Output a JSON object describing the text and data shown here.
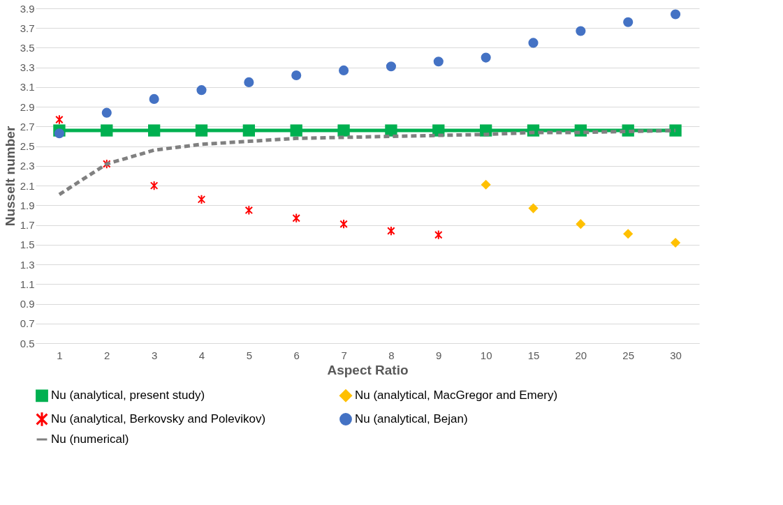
{
  "chart_data": {
    "type": "scatter",
    "xlabel": "Aspect Ratio",
    "ylabel": "Nusselt number",
    "categories": [
      "1",
      "2",
      "3",
      "4",
      "5",
      "6",
      "7",
      "8",
      "9",
      "10",
      "15",
      "20",
      "25",
      "30"
    ],
    "ylim": [
      0.5,
      3.9
    ],
    "yticks": [
      0.5,
      0.7,
      0.9,
      1.1,
      1.3,
      1.5,
      1.7,
      1.9,
      2.1,
      2.3,
      2.5,
      2.7,
      2.9,
      3.1,
      3.3,
      3.5,
      3.7,
      3.9
    ],
    "grid": "y",
    "legend": "bottom",
    "series": [
      {
        "name": "Nu (analytical, present study)",
        "type": "line",
        "marker": "square",
        "line_style": "solid",
        "color": "#00b050",
        "values": [
          2.66,
          2.66,
          2.66,
          2.66,
          2.66,
          2.66,
          2.66,
          2.66,
          2.66,
          2.66,
          2.66,
          2.66,
          2.66,
          2.66
        ]
      },
      {
        "name": "Nu (analytical, MacGregor and Emery)",
        "type": "scatter",
        "marker": "diamond",
        "color": "#ffc000",
        "values": [
          null,
          null,
          null,
          null,
          null,
          null,
          null,
          null,
          null,
          2.11,
          1.87,
          1.71,
          1.61,
          1.52
        ]
      },
      {
        "name": "Nu (analytical, Berkovsky and Polevikov)",
        "type": "scatter",
        "marker": "cross",
        "color": "#ff0000",
        "values": [
          2.77,
          2.32,
          2.1,
          1.96,
          1.85,
          1.77,
          1.71,
          1.64,
          1.6,
          null,
          null,
          null,
          null,
          null
        ]
      },
      {
        "name": "Nu (analytical, Bejan)",
        "type": "scatter",
        "marker": "circle",
        "color": "#4472c4",
        "values": [
          2.63,
          2.84,
          2.98,
          3.07,
          3.15,
          3.22,
          3.27,
          3.31,
          3.36,
          3.4,
          3.55,
          3.67,
          3.76,
          3.84
        ]
      },
      {
        "name": "Nu (numerical)",
        "type": "line",
        "marker": "none",
        "line_style": "dashed",
        "color": "#808080",
        "values": [
          2.01,
          2.32,
          2.46,
          2.52,
          2.55,
          2.58,
          2.59,
          2.6,
          2.61,
          2.62,
          2.64,
          2.64,
          2.65,
          2.66
        ]
      }
    ]
  }
}
